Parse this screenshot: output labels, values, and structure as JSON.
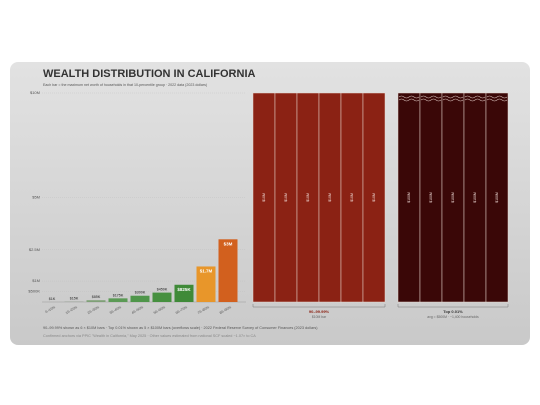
{
  "chart_data": {
    "type": "bar",
    "title": "WEALTH DISTRIBUTION IN CALIFORNIA",
    "subtitle": "Each bar = the maximum net worth of households in that 10-percentile group · 2022 data (2023 dollars)",
    "categories": [
      "0–10%",
      "10–20%",
      "20–30%",
      "30–40%",
      "40–50%",
      "50–60%",
      "60–70%",
      "70–80%",
      "80–90%"
    ],
    "values": [
      1000,
      15000,
      85000,
      175000,
      300000,
      450000,
      825000,
      1700000,
      3000000
    ],
    "value_labels": [
      "$1K",
      "$15K",
      "$85K",
      "$175K",
      "$300K",
      "$450K",
      "$825K",
      "$1.7M",
      "$3M"
    ],
    "colors": [
      "#8f9a8a",
      "#8f9a8a",
      "#7fa077",
      "#5b9a55",
      "#4f964a",
      "#46903f",
      "#3f8a38",
      "#e8962a",
      "#d2601e"
    ],
    "ylim": [
      0,
      10000000
    ],
    "yticks": [
      {
        "value": 500000,
        "label": "$500K"
      },
      {
        "value": 1000000,
        "label": "$1M"
      },
      {
        "value": 2500000,
        "label": "$2.5M"
      },
      {
        "value": 5000000,
        "label": "$5M"
      },
      {
        "value": 10000000,
        "label": "$10M"
      }
    ],
    "groups": [
      {
        "name": "90–99.99%",
        "note": "$10M bar",
        "color": "#8b2214",
        "bar_label": "$10M",
        "values": [
          10000000,
          10000000,
          10000000,
          10000000,
          10000000,
          10000000
        ]
      },
      {
        "name": "Top 0.01%",
        "note": "avg = $500M · ~1,400 households",
        "color": "#3a0707",
        "bar_label": "$100M",
        "values": [
          100000000,
          100000000,
          100000000,
          100000000,
          100000000
        ]
      }
    ],
    "footnotes": [
      "90–99.99% shown as 6 × $10M bars · Top 0.01% shown as 5 × $100M bars (overflows scale) · 2022 Federal Reserve Survey of Consumer Finances (2023 dollars)",
      "Confirmed anchors via PPIC \"Wealth in California,\" May 2025 · Other values estimated from national SCF scaled ~1.07× to CA"
    ]
  }
}
